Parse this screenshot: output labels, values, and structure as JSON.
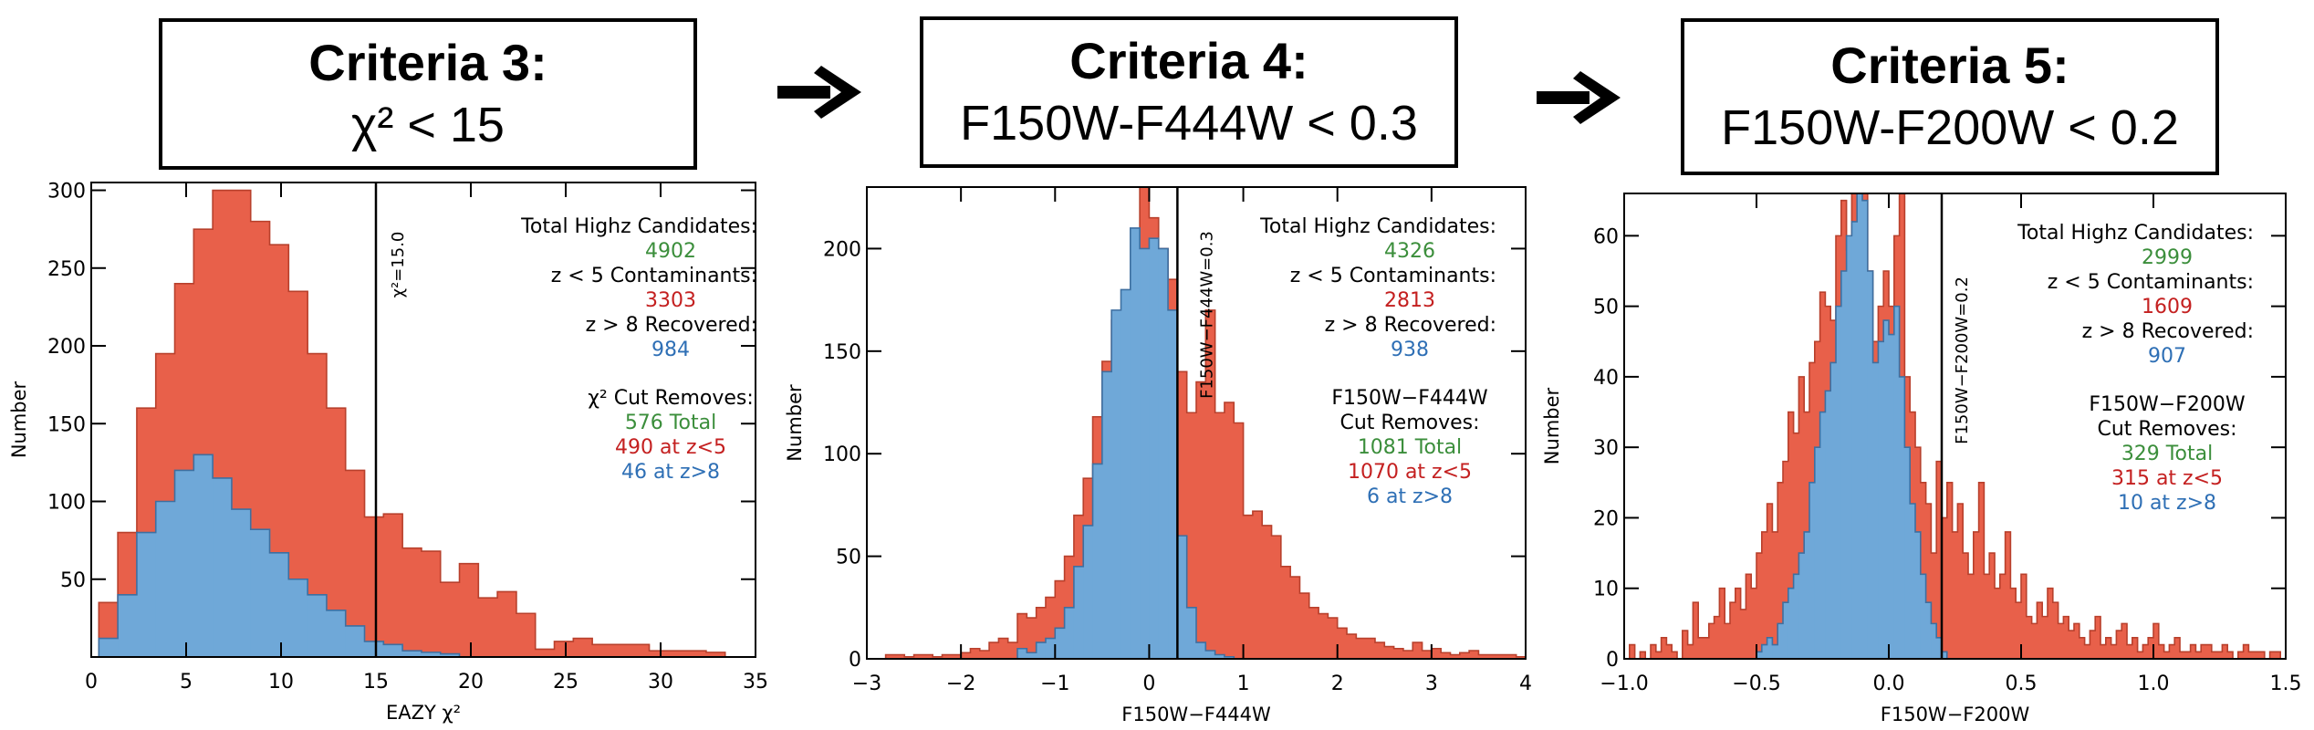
{
  "criteria": [
    {
      "title": "Criteria 3:",
      "condition": "χ² < 15"
    },
    {
      "title": "Criteria 4:",
      "condition": "F150W-F444W < 0.3"
    },
    {
      "title": "Criteria 5:",
      "condition": "F150W-F200W < 0.2"
    }
  ],
  "colors": {
    "red": "#E8604A",
    "blue": "#6FA8D8",
    "green": "#3B8E3B",
    "redtext": "#C42020",
    "bluetext": "#2E6FB5",
    "edge_red": "#B8402C",
    "edge_blue": "#3E6FA0"
  },
  "chart_data": [
    {
      "type": "bar",
      "title": "Criteria 3: χ² < 15",
      "xlabel": "EAZY χ²",
      "ylabel": "Number",
      "xlim": [
        0,
        35
      ],
      "ylim": [
        0,
        305
      ],
      "xticks": [
        "0",
        "5",
        "10",
        "15",
        "20",
        "25",
        "30",
        "35"
      ],
      "yticks": [
        "50",
        "100",
        "150",
        "200",
        "250",
        "300"
      ],
      "bin_start": 0.4,
      "bin_width": 1.0,
      "series": [
        {
          "name": "Total Highz Candidates",
          "values": [
            35,
            80,
            160,
            195,
            240,
            275,
            300,
            300,
            280,
            265,
            235,
            195,
            160,
            120,
            90,
            92,
            70,
            68,
            48,
            60,
            38,
            42,
            28,
            5,
            10,
            12,
            8,
            8,
            8,
            4,
            4,
            4,
            3,
            0,
            0
          ]
        },
        {
          "name": "z > 8 Recovered",
          "values": [
            12,
            40,
            80,
            100,
            120,
            130,
            115,
            95,
            82,
            67,
            50,
            40,
            30,
            20,
            10,
            8,
            4,
            3,
            2,
            0,
            0,
            0,
            0,
            0,
            0,
            0,
            0,
            0,
            0,
            0,
            0,
            0,
            0,
            0,
            0
          ]
        }
      ],
      "cut_line": {
        "x": 15.0,
        "label": "χ²=15.0"
      },
      "annotation": {
        "total_label": "Total Highz Candidates:",
        "total_value": "4902",
        "contam_label": "z < 5 Contaminants:",
        "contam_value": "3303",
        "recovered_label": "z > 8 Recovered:",
        "recovered_value": "984",
        "cut_title_1": "χ² Cut Removes:",
        "cut_title_2": "",
        "cut_total": "576 Total",
        "cut_z5": "490 at z<5",
        "cut_z8": "46 at z>8"
      }
    },
    {
      "type": "bar",
      "title": "Criteria 4: F150W-F444W < 0.3",
      "xlabel": "F150W−F444W",
      "ylabel": "Number",
      "xlim": [
        -3,
        4
      ],
      "ylim": [
        0,
        230
      ],
      "xticks": [
        "−3",
        "−2",
        "−1",
        "0",
        "1",
        "2",
        "3",
        "4"
      ],
      "yticks": [
        "0",
        "50",
        "100",
        "150",
        "200"
      ],
      "bin_start": -2.8,
      "bin_width": 0.1,
      "series": [
        {
          "name": "Total Highz Candidates",
          "values": [
            2,
            2,
            1,
            2,
            2,
            1,
            2,
            2,
            3,
            5,
            4,
            8,
            10,
            8,
            22,
            20,
            25,
            30,
            38,
            50,
            70,
            88,
            118,
            145,
            165,
            165,
            200,
            230,
            215,
            200,
            185,
            140,
            120,
            135,
            170,
            120,
            125,
            115,
            70,
            72,
            65,
            60,
            45,
            40,
            32,
            25,
            22,
            20,
            15,
            12,
            10,
            10,
            8,
            6,
            5,
            4,
            8,
            4,
            5,
            3,
            2,
            3,
            4,
            2,
            2,
            2,
            2,
            1
          ]
        },
        {
          "name": "z > 8 Recovered",
          "values": [
            0,
            0,
            0,
            0,
            0,
            0,
            0,
            0,
            0,
            0,
            0,
            0,
            0,
            0,
            5,
            3,
            8,
            10,
            15,
            25,
            45,
            65,
            95,
            140,
            170,
            180,
            210,
            200,
            205,
            200,
            170,
            60,
            25,
            8,
            4,
            2,
            1,
            0,
            0,
            0,
            0,
            0,
            0,
            0,
            0,
            0,
            0,
            0,
            0,
            0,
            0,
            0,
            0,
            0,
            0,
            0,
            0,
            0,
            0,
            0,
            0,
            0,
            0,
            0,
            0,
            0,
            0,
            0
          ]
        }
      ],
      "cut_line": {
        "x": 0.3,
        "label": "F150W−F444W=0.3"
      },
      "annotation": {
        "total_label": "Total Highz Candidates:",
        "total_value": "4326",
        "contam_label": "z < 5 Contaminants:",
        "contam_value": "2813",
        "recovered_label": "z > 8 Recovered:",
        "recovered_value": "938",
        "cut_title_1": "F150W−F444W",
        "cut_title_2": "Cut Removes:",
        "cut_total": "1081 Total",
        "cut_z5": "1070 at z<5",
        "cut_z8": "6 at z>8"
      }
    },
    {
      "type": "bar",
      "title": "Criteria 5: F150W-F200W < 0.2",
      "xlabel": "F150W−F200W",
      "ylabel": "Number",
      "xlim": [
        -1.0,
        1.5
      ],
      "ylim": [
        0,
        66
      ],
      "xticks": [
        "−1.0",
        "−0.5",
        "0.0",
        "0.5",
        "1.0",
        "1.5"
      ],
      "yticks": [
        "0",
        "10",
        "20",
        "30",
        "40",
        "50",
        "60"
      ],
      "bin_start": -0.98,
      "bin_width": 0.02,
      "series": [
        {
          "name": "Total Highz Candidates",
          "values": [
            2,
            0,
            1,
            0,
            2,
            1,
            3,
            2,
            1,
            0,
            4,
            2,
            8,
            3,
            3,
            5,
            6,
            10,
            5,
            8,
            10,
            7,
            12,
            10,
            15,
            18,
            22,
            18,
            25,
            28,
            35,
            32,
            40,
            35,
            42,
            45,
            52,
            50,
            48,
            60,
            65,
            58,
            66,
            62,
            66,
            55,
            45,
            50,
            55,
            50,
            60,
            66,
            40,
            35,
            30,
            25,
            22,
            15,
            28,
            20,
            25,
            18,
            22,
            15,
            12,
            18,
            25,
            12,
            15,
            10,
            12,
            18,
            10,
            8,
            12,
            6,
            5,
            8,
            6,
            10,
            8,
            5,
            6,
            4,
            5,
            3,
            2,
            4,
            6,
            2,
            3,
            2,
            4,
            5,
            2,
            3,
            1,
            2,
            3,
            5,
            2,
            1,
            2,
            3,
            1,
            1,
            2,
            1,
            2,
            2,
            1,
            1,
            2,
            1,
            0,
            1,
            2,
            1,
            1,
            1,
            0,
            1,
            1,
            0,
            1
          ]
        },
        {
          "name": "z > 8 Recovered",
          "values": [
            0,
            0,
            0,
            0,
            0,
            0,
            0,
            0,
            0,
            0,
            0,
            0,
            0,
            0,
            0,
            0,
            0,
            0,
            0,
            0,
            0,
            0,
            0,
            0,
            1,
            2,
            3,
            2,
            5,
            8,
            10,
            12,
            15,
            18,
            25,
            30,
            35,
            38,
            42,
            50,
            55,
            60,
            62,
            66,
            65,
            55,
            42,
            45,
            48,
            46,
            50,
            40,
            30,
            22,
            18,
            12,
            8,
            5,
            3,
            1,
            0,
            0,
            0,
            0,
            0,
            0,
            0,
            0,
            0,
            0,
            0,
            0,
            0,
            0,
            0,
            0,
            0,
            0,
            0,
            0,
            0,
            0,
            0,
            0,
            0,
            0,
            0,
            0,
            0,
            0,
            0,
            0,
            0,
            0,
            0,
            0,
            0,
            0,
            0,
            0,
            0,
            0,
            0,
            0,
            0,
            0,
            0,
            0,
            0,
            0,
            0,
            0,
            0,
            0,
            0,
            0,
            0,
            0,
            0,
            0,
            0,
            0,
            0,
            0,
            0
          ]
        }
      ],
      "cut_line": {
        "x": 0.2,
        "label": "F150W−F200W=0.2"
      },
      "annotation": {
        "total_label": "Total Highz Candidates:",
        "total_value": "2999",
        "contam_label": "z < 5 Contaminants:",
        "contam_value": "1609",
        "recovered_label": "z > 8 Recovered:",
        "recovered_value": "907",
        "cut_title_1": "F150W−F200W",
        "cut_title_2": "Cut Removes:",
        "cut_total": "329 Total",
        "cut_z5": "315 at z<5",
        "cut_z8": "10 at z>8"
      }
    }
  ]
}
